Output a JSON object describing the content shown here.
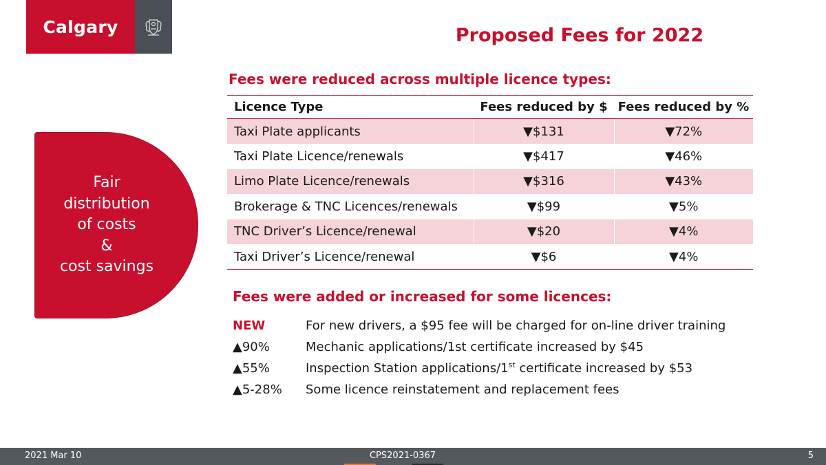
{
  "header": {
    "logo_text": "Calgary",
    "crest_icon": "city-crest-icon",
    "title": "Proposed Fees for 2022"
  },
  "badge": {
    "text": "Fair\ndistribution\nof costs\n&\ncost savings"
  },
  "reduced": {
    "heading": "Fees were reduced across multiple licence types:",
    "columns": [
      "Licence Type",
      "Fees reduced by $",
      "Fees reduced by %"
    ],
    "rows": [
      {
        "type": "Taxi Plate applicants",
        "dollars": "▼$131",
        "percent": "▼72%"
      },
      {
        "type": "Taxi Plate Licence/renewals",
        "dollars": "▼$417",
        "percent": "▼46%"
      },
      {
        "type": "Limo Plate Licence/renewals",
        "dollars": "▼$316",
        "percent": "▼43%"
      },
      {
        "type": "Brokerage & TNC Licences/renewals",
        "dollars": "▼$99",
        "percent": "▼5%"
      },
      {
        "type": "TNC Driver’s Licence/renewal",
        "dollars": "▼$20",
        "percent": "▼4%"
      },
      {
        "type": "Taxi Driver’s Licence/renewal",
        "dollars": "▼$6",
        "percent": "▼4%"
      }
    ]
  },
  "increased": {
    "heading": "Fees were added or increased for some licences:",
    "items": [
      {
        "tag": "NEW",
        "desc": "For new drivers, a $95 fee will be charged for on-line driver training"
      },
      {
        "tag": "▲90%",
        "desc": "Mechanic applications/1st certificate increased by $45"
      },
      {
        "tag": "▲55%",
        "desc_pre": "Inspection Station applications/1",
        "desc_sup": "st",
        "desc_post": " certificate increased by $53"
      },
      {
        "tag": "▲5-28%",
        "desc": "Some licence reinstatement and replacement fees"
      }
    ]
  },
  "footer": {
    "date": "2021 Mar 10",
    "code": "CPS2021-0367",
    "page": "5"
  },
  "colors": {
    "brand_red": "#c8102e",
    "row_shade": "#f5d3d8",
    "footer_gray": "#54595e"
  }
}
